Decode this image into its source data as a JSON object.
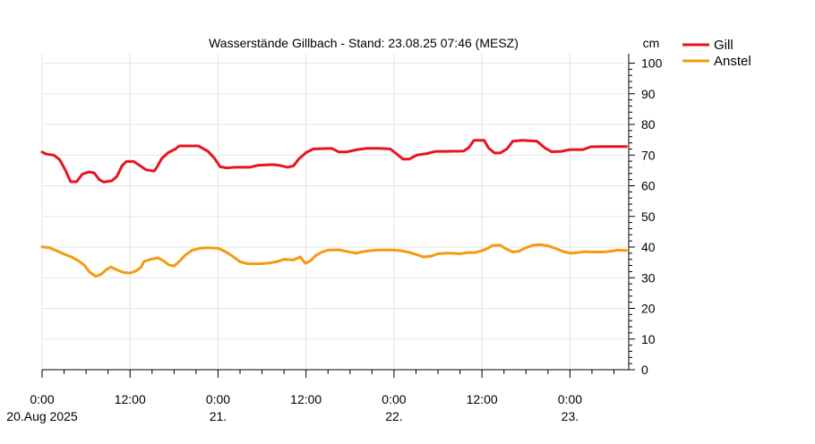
{
  "chart_data": {
    "type": "line",
    "title": "Wasserstände Gillbach - Stand: 23.08.25 07:46 (MESZ)",
    "ylabel": "cm",
    "ylim": [
      0,
      100
    ],
    "y_ticks": [
      0,
      10,
      20,
      30,
      40,
      50,
      60,
      70,
      80,
      90,
      100
    ],
    "xlim_hours": [
      0,
      79.77
    ],
    "x_major_ticks": [
      {
        "hour": 0,
        "time": "0:00",
        "date": "20.Aug 2025"
      },
      {
        "hour": 12,
        "time": "12:00",
        "date": ""
      },
      {
        "hour": 24,
        "time": "0:00",
        "date": "21."
      },
      {
        "hour": 36,
        "time": "12:00",
        "date": ""
      },
      {
        "hour": 48,
        "time": "0:00",
        "date": "22."
      },
      {
        "hour": 60,
        "time": "12:00",
        "date": ""
      },
      {
        "hour": 72,
        "time": "0:00",
        "date": "23."
      }
    ],
    "grid": true,
    "legend_position": "top-right",
    "series": [
      {
        "name": "Gill",
        "color": "#e8141c",
        "points": [
          [
            0,
            71
          ],
          [
            0.6,
            70.3
          ],
          [
            1.6,
            70
          ],
          [
            2.4,
            68.5
          ],
          [
            3.2,
            65
          ],
          [
            3.9,
            61.3
          ],
          [
            4.7,
            61.3
          ],
          [
            5.5,
            63.8
          ],
          [
            6.4,
            64.5
          ],
          [
            7.1,
            64.2
          ],
          [
            7.8,
            62
          ],
          [
            8.4,
            61.2
          ],
          [
            9.5,
            61.6
          ],
          [
            10.2,
            63
          ],
          [
            10.9,
            66.5
          ],
          [
            11.5,
            67.9
          ],
          [
            12.5,
            67.9
          ],
          [
            13.2,
            66.8
          ],
          [
            14.2,
            65.2
          ],
          [
            15.3,
            64.8
          ],
          [
            15.7,
            66.2
          ],
          [
            16.3,
            68.8
          ],
          [
            17.2,
            70.8
          ],
          [
            18.2,
            72
          ],
          [
            18.7,
            73
          ],
          [
            20,
            73
          ],
          [
            21.3,
            73
          ],
          [
            22.6,
            71.3
          ],
          [
            23.5,
            69
          ],
          [
            24.3,
            66.2
          ],
          [
            25.2,
            65.8
          ],
          [
            26.3,
            66
          ],
          [
            28.3,
            66
          ],
          [
            29.5,
            66.7
          ],
          [
            31.5,
            66.9
          ],
          [
            32.5,
            66.6
          ],
          [
            33.5,
            66
          ],
          [
            34.3,
            66.5
          ],
          [
            35,
            68.7
          ],
          [
            36,
            70.8
          ],
          [
            37,
            72
          ],
          [
            39.5,
            72.2
          ],
          [
            40.5,
            71
          ],
          [
            41.5,
            71
          ],
          [
            43,
            71.8
          ],
          [
            44.3,
            72.2
          ],
          [
            46,
            72.2
          ],
          [
            47.5,
            72
          ],
          [
            48.3,
            70.5
          ],
          [
            49.2,
            68.7
          ],
          [
            50.1,
            68.7
          ],
          [
            51.1,
            70
          ],
          [
            52.5,
            70.5
          ],
          [
            53.7,
            71.2
          ],
          [
            55,
            71.2
          ],
          [
            57.5,
            71.3
          ],
          [
            58.2,
            72.4
          ],
          [
            58.9,
            74.8
          ],
          [
            60.3,
            74.8
          ],
          [
            60.9,
            72.3
          ],
          [
            61.7,
            70.7
          ],
          [
            62.5,
            70.7
          ],
          [
            63.4,
            72
          ],
          [
            64.2,
            74.5
          ],
          [
            65.5,
            74.8
          ],
          [
            67.5,
            74.5
          ],
          [
            68.6,
            72.3
          ],
          [
            69.5,
            71.1
          ],
          [
            70.8,
            71.2
          ],
          [
            72,
            71.8
          ],
          [
            73.8,
            71.8
          ],
          [
            74.8,
            72.7
          ],
          [
            76.5,
            72.8
          ],
          [
            79.7,
            72.8
          ]
        ]
      },
      {
        "name": "Anstel",
        "color": "#f59a0e",
        "points": [
          [
            0,
            40.1
          ],
          [
            1,
            39.8
          ],
          [
            2,
            38.8
          ],
          [
            3,
            37.7
          ],
          [
            4,
            36.8
          ],
          [
            5,
            35.5
          ],
          [
            5.8,
            34
          ],
          [
            6.5,
            31.8
          ],
          [
            7.3,
            30.5
          ],
          [
            8,
            31
          ],
          [
            8.8,
            32.7
          ],
          [
            9.4,
            33.5
          ],
          [
            10.3,
            32.5
          ],
          [
            11,
            31.8
          ],
          [
            12,
            31.5
          ],
          [
            12.8,
            32.2
          ],
          [
            13.5,
            33.4
          ],
          [
            13.9,
            35.3
          ],
          [
            14.8,
            36
          ],
          [
            15.8,
            36.5
          ],
          [
            16.5,
            35.6
          ],
          [
            17.3,
            34.2
          ],
          [
            18,
            33.8
          ],
          [
            18.8,
            35.5
          ],
          [
            19.5,
            37.3
          ],
          [
            20.5,
            39
          ],
          [
            21.5,
            39.6
          ],
          [
            22.5,
            39.8
          ],
          [
            24,
            39.6
          ],
          [
            25,
            38.5
          ],
          [
            26,
            37
          ],
          [
            27,
            35.2
          ],
          [
            28,
            34.6
          ],
          [
            29,
            34.5
          ],
          [
            30,
            34.6
          ],
          [
            31,
            34.8
          ],
          [
            32,
            35.2
          ],
          [
            33,
            36
          ],
          [
            34.3,
            35.8
          ],
          [
            35.2,
            36.8
          ],
          [
            35.9,
            34.7
          ],
          [
            36.6,
            35.5
          ],
          [
            37.3,
            37.2
          ],
          [
            38.2,
            38.4
          ],
          [
            39,
            39
          ],
          [
            40.5,
            39.1
          ],
          [
            41.5,
            38.6
          ],
          [
            42.8,
            38
          ],
          [
            44,
            38.6
          ],
          [
            45.5,
            39
          ],
          [
            47,
            39.1
          ],
          [
            48,
            39
          ],
          [
            49,
            38.8
          ],
          [
            50,
            38.3
          ],
          [
            51,
            37.6
          ],
          [
            52,
            36.8
          ],
          [
            53,
            37
          ],
          [
            54,
            37.8
          ],
          [
            55,
            38
          ],
          [
            56,
            38
          ],
          [
            57,
            37.8
          ],
          [
            58,
            38.2
          ],
          [
            59,
            38.2
          ],
          [
            60,
            38.8
          ],
          [
            60.8,
            39.6
          ],
          [
            61.4,
            40.5
          ],
          [
            62.5,
            40.6
          ],
          [
            63.2,
            39.5
          ],
          [
            64.2,
            38.4
          ],
          [
            65,
            38.6
          ],
          [
            66,
            39.8
          ],
          [
            67,
            40.6
          ],
          [
            68,
            40.8
          ],
          [
            69,
            40.4
          ],
          [
            70,
            39.6
          ],
          [
            71,
            38.6
          ],
          [
            72,
            38
          ],
          [
            73,
            38.2
          ],
          [
            74,
            38.5
          ],
          [
            75,
            38.4
          ],
          [
            76.5,
            38.4
          ],
          [
            77.5,
            38.6
          ],
          [
            78.5,
            39
          ],
          [
            79.2,
            38.9
          ],
          [
            79.7,
            38.9
          ]
        ]
      }
    ]
  }
}
